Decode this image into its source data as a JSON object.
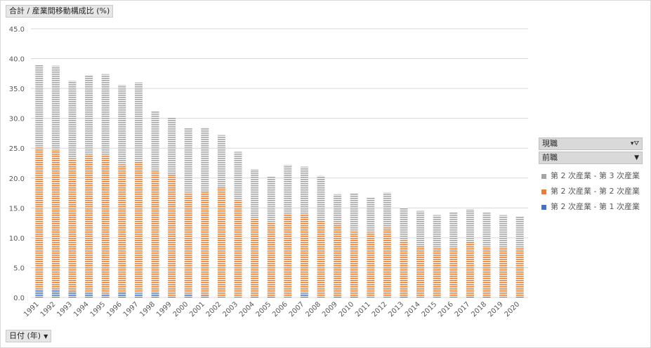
{
  "value_field": {
    "label": "合計 / 産業間移動構成比 (%)"
  },
  "axis_field": {
    "label": "日付 (年)",
    "dropdown_icon": "dropdown-arrow-icon"
  },
  "legend": {
    "current_job_field": "現職",
    "current_job_controls": "filter-icon",
    "previous_job_field": "前職",
    "previous_job_controls": "dropdown-arrow-icon",
    "items": [
      {
        "label": "第 2 次産業 - 第 3 次産業",
        "color": "#a5a5a5"
      },
      {
        "label": "第 2 次産業 - 第 2 次産業",
        "color": "#ed7d31"
      },
      {
        "label": "第 2 次産業 - 第 1 次産業",
        "color": "#4472c4"
      }
    ]
  },
  "chart_data": {
    "type": "bar",
    "stacked": true,
    "categories": [
      "1991",
      "1992",
      "1993",
      "1994",
      "1995",
      "1996",
      "1997",
      "1998",
      "1999",
      "2000",
      "2001",
      "2002",
      "2003",
      "2004",
      "2005",
      "2006",
      "2007",
      "2008",
      "2009",
      "2010",
      "2011",
      "2012",
      "2013",
      "2014",
      "2015",
      "2016",
      "2017",
      "2018",
      "2019",
      "2020"
    ],
    "series": [
      {
        "name": "第 2 次産業 - 第 1 次産業",
        "color": "#4472c4",
        "values": [
          1.3,
          1.3,
          1.1,
          0.8,
          0.6,
          0.9,
          0.7,
          0.8,
          0.2,
          0.6,
          0.4,
          0.1,
          0.1,
          0.2,
          0.2,
          0.1,
          0.7,
          0.1,
          0.2,
          0.3,
          0.1,
          0.1,
          0.2,
          0.1,
          0.1,
          0.1,
          0.2,
          0.3,
          0.1,
          0.2
        ]
      },
      {
        "name": "第 2 次産業 - 第 2 次産業",
        "color": "#ed7d31",
        "values": [
          23.8,
          23.4,
          22.1,
          23.1,
          23.3,
          21.4,
          22.1,
          20.5,
          20.6,
          16.9,
          17.5,
          18.6,
          16.2,
          13.1,
          12.4,
          13.8,
          13.3,
          12.9,
          12.2,
          10.9,
          10.9,
          11.6,
          9.4,
          8.6,
          8.2,
          8.3,
          9.1,
          8.2,
          8.3,
          8.1
        ]
      },
      {
        "name": "第 2 次産業 - 第 3 次産業",
        "color": "#a5a5a5",
        "values": [
          13.8,
          14.1,
          13.1,
          13.4,
          13.5,
          13.3,
          13.2,
          9.9,
          9.3,
          10.9,
          10.6,
          8.5,
          8.1,
          8.2,
          7.7,
          8.3,
          7.9,
          7.4,
          4.9,
          6.3,
          5.7,
          5.9,
          5.4,
          5.8,
          5.5,
          5.9,
          5.5,
          5.7,
          5.4,
          5.3
        ]
      }
    ],
    "ylim": [
      0,
      45
    ],
    "yticks": [
      "0.0",
      "5.0",
      "10.0",
      "15.0",
      "20.0",
      "25.0",
      "30.0",
      "35.0",
      "40.0",
      "45.0"
    ],
    "grid": true,
    "legend_position": "right"
  }
}
